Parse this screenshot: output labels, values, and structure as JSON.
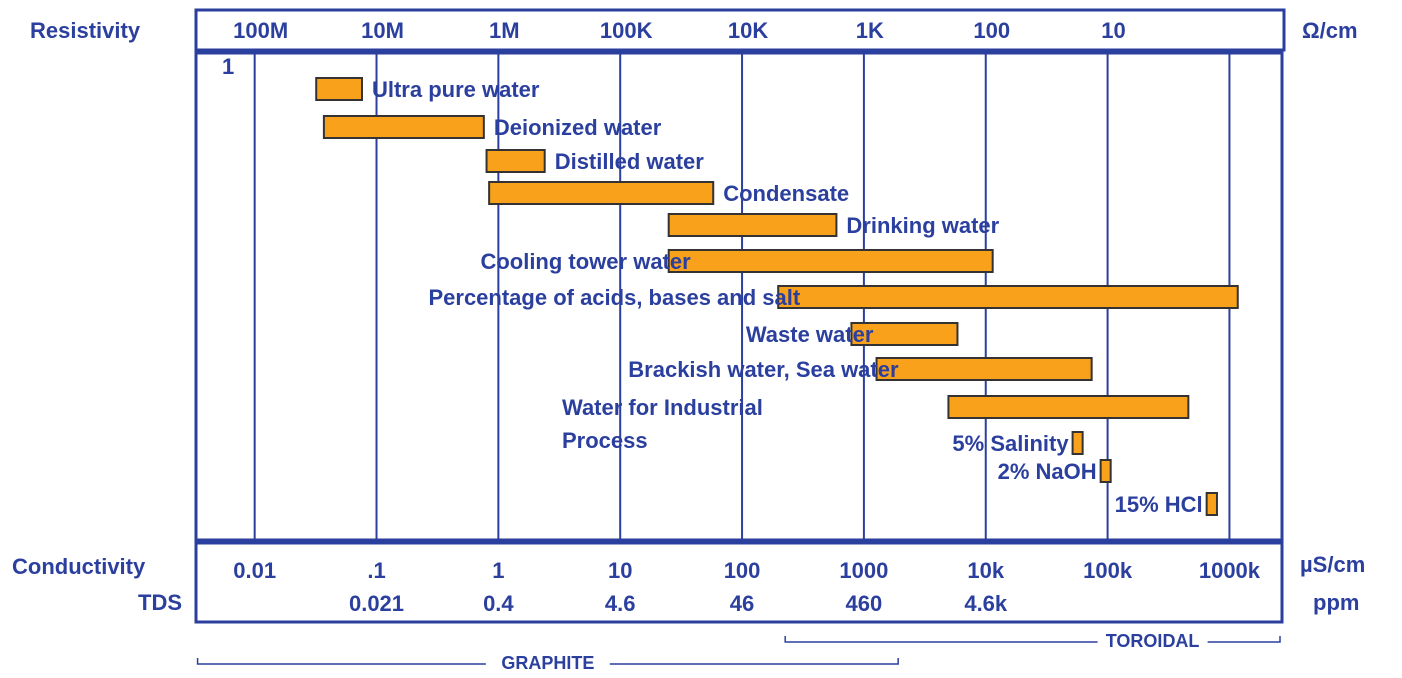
{
  "chart_data": {
    "type": "range_bar",
    "x_scale": "log",
    "xlabel": "Conductivity",
    "xunit": "µS/cm",
    "xlim": [
      0.0033,
      2700000
    ],
    "xticks": [
      0.01,
      {
        "value": 0.1,
        "label": ".1"
      },
      1,
      10,
      100,
      1000,
      {
        "value": 10000,
        "label": "10k"
      },
      {
        "value": 100000,
        "label": "100k"
      },
      {
        "value": 1000000,
        "label": "1000k"
      }
    ],
    "x2label": "Resistivity",
    "x2unit": "Ω/cm",
    "x2lim": [
      303000000,
      0.37
    ],
    "x2ticks": [
      {
        "value": 100000000,
        "label": "100M"
      },
      {
        "value": 10000000,
        "label": "10M"
      },
      {
        "value": 1000000,
        "label": "1M"
      },
      {
        "value": 100000,
        "label": "100K"
      },
      {
        "value": 10000,
        "label": "10K"
      },
      {
        "value": 1000,
        "label": "1K"
      },
      100,
      10
    ],
    "annotation": "1",
    "tds": {
      "name": "TDS",
      "unit": "ppm",
      "at": [
        0.1,
        1,
        10,
        100,
        1000,
        10000
      ],
      "values": [
        0.021,
        0.4,
        4.6,
        46,
        460,
        {
          "value": 4600,
          "label": "4.6k"
        }
      ]
    },
    "grid": true,
    "color": "#f9a11b",
    "bars": [
      {
        "label": "Ultra pure water",
        "side": "right",
        "from": 0.032,
        "to": 0.076
      },
      {
        "label": "Deionized water",
        "side": "right",
        "from": 0.037,
        "to": 0.76
      },
      {
        "label": "Distilled water",
        "side": "right",
        "from": 0.8,
        "to": 2.4
      },
      {
        "label": "Condensate",
        "side": "right",
        "from": 0.84,
        "to": 58
      },
      {
        "label": "Drinking water",
        "side": "right",
        "from": 25,
        "to": 595
      },
      {
        "label": "Cooling tower water",
        "side": "left",
        "from": 25,
        "to": 11400
      },
      {
        "label": "Percentage of acids, bases and salt",
        "side": "left",
        "from": 198,
        "to": 1170000
      },
      {
        "label": "Waste water",
        "side": "left",
        "from": 790,
        "to": 5860
      },
      {
        "label": "Brackish water, Sea water",
        "side": "left",
        "from": 1270,
        "to": 74000
      },
      {
        "label": [
          "Water for Industrial",
          "Process"
        ],
        "side": "left",
        "from": 4940,
        "to": 460000
      },
      {
        "label": "5% Salinity",
        "side": "left",
        "from": 51600,
        "to": 62400
      },
      {
        "label": "2% NaOH",
        "side": "left",
        "from": 87700,
        "to": 106000
      },
      {
        "label": "15% HCl",
        "side": "left",
        "from": 650000,
        "to": 790000
      }
    ],
    "ranges": [
      {
        "name": "TOROIDAL",
        "from": 226,
        "to": 2600000
      },
      {
        "name": "GRAPHITE",
        "from": 0.0034,
        "to": 1910
      }
    ]
  }
}
